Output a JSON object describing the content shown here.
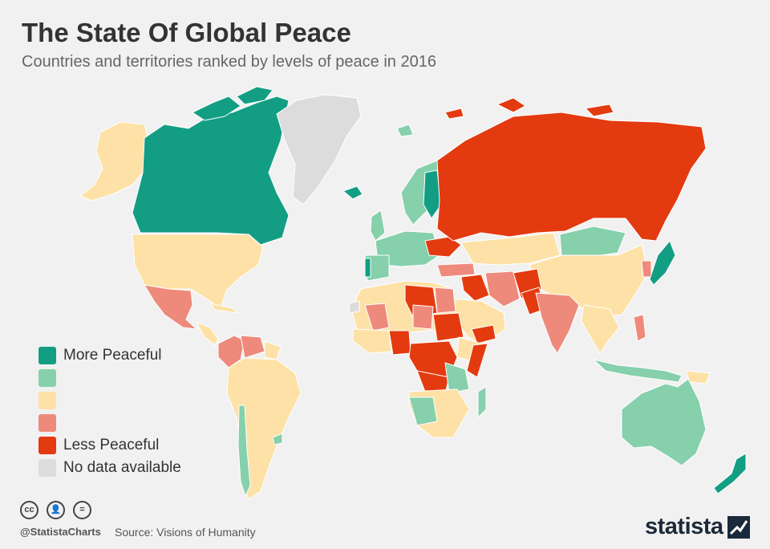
{
  "header": {
    "title": "The State Of Global Peace",
    "subtitle": "Countries and territories ranked by levels of peace in 2016"
  },
  "colors": {
    "more_peaceful": "#139e84",
    "peaceful": "#86d0ac",
    "medium": "#fde1a6",
    "less": "#ee8a7c",
    "less_peaceful": "#e43a0f",
    "no_data": "#dcdcdc"
  },
  "legend": {
    "items": [
      {
        "label": "More Peaceful",
        "color": "#139e84"
      },
      {
        "label": "",
        "color": "#86d0ac"
      },
      {
        "label": "",
        "color": "#fde1a6"
      },
      {
        "label": "",
        "color": "#ee8a7c"
      },
      {
        "label": "Less Peaceful",
        "color": "#e43a0f"
      },
      {
        "label": "No data available",
        "color": "#dcdcdc"
      }
    ]
  },
  "footer": {
    "license_icons": [
      "cc-icon",
      "attribution-icon",
      "no-derivatives-icon"
    ],
    "credit": "@StatistaCharts",
    "source": "Source: Visions of Humanity",
    "logo": "statista"
  }
}
